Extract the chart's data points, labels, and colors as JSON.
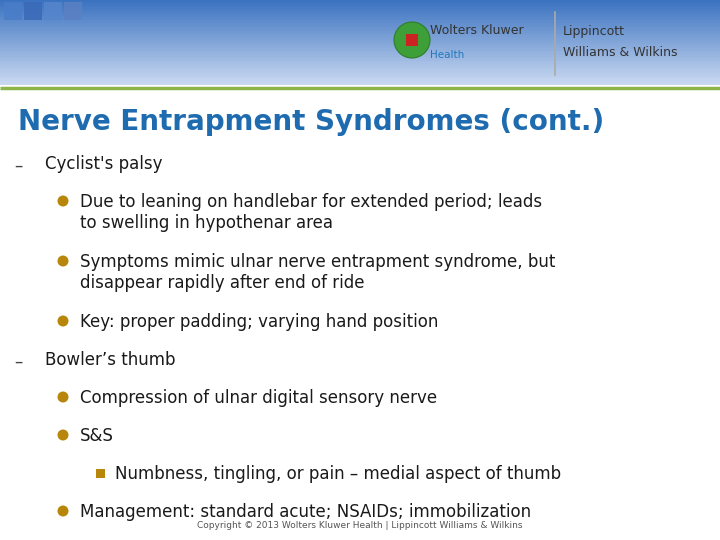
{
  "title": "Nerve Entrapment Syndromes (cont.)",
  "title_color": "#1F6BB0",
  "title_fontsize": 20,
  "bg_color": "#FFFFFF",
  "header_line_color": "#8DB54A",
  "bullet_color": "#B8860B",
  "text_color": "#1A1A1A",
  "dash_color": "#444444",
  "footer_text": "Copyright © 2013 Wolters Kluwer Health | Lippincott Williams & Wilkins",
  "footer_color": "#555555",
  "logo_text1": "Wolters Kluwer",
  "logo_text2": "Lippincott",
  "logo_text3": "Williams & Wilkins",
  "logo_health": "Health",
  "content": [
    {
      "level": 1,
      "type": "dash",
      "text": "Cyclist's palsy"
    },
    {
      "level": 2,
      "type": "bullet",
      "text": "Due to leaning on handlebar for extended period; leads\nto swelling in hypothenar area"
    },
    {
      "level": 2,
      "type": "bullet",
      "text": "Symptoms mimic ulnar nerve entrapment syndrome, but\ndisappear rapidly after end of ride"
    },
    {
      "level": 2,
      "type": "bullet",
      "text": "Key: proper padding; varying hand position"
    },
    {
      "level": 1,
      "type": "dash",
      "text": "Bowler’s thumb"
    },
    {
      "level": 2,
      "type": "bullet",
      "text": "Compression of ulnar digital sensory nerve"
    },
    {
      "level": 2,
      "type": "bullet",
      "text": "S&S"
    },
    {
      "level": 3,
      "type": "smallbullet",
      "text": "Numbness, tingling, or pain – medial aspect of thumb"
    },
    {
      "level": 2,
      "type": "bullet",
      "text": "Management: standard acute; NSAIDs; immobilization"
    }
  ]
}
